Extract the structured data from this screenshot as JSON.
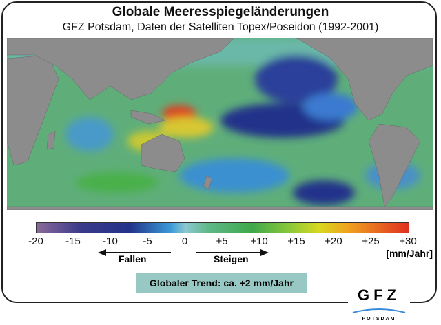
{
  "title": "Globale Meeresspiegeländerungen",
  "subtitle": "GFZ Potsdam, Daten der Satelliten Topex/Poseidon (1992-2001)",
  "colorbar": {
    "ticks": [
      "-20",
      "-15",
      "-10",
      "-5",
      "0",
      "+5",
      "+10",
      "+15",
      "+20",
      "+25",
      "+30"
    ],
    "unit": "[mm/Jahr]",
    "range": [
      -20,
      30
    ],
    "colors": [
      "#8a6a9a",
      "#23338a",
      "#3a9ad8",
      "#8cc8d0",
      "#3fa84a",
      "#d8d820",
      "#e03020"
    ]
  },
  "arrows": {
    "falling": "Fallen",
    "rising": "Steigen"
  },
  "trend": "Globaler Trend: ca. +2 mm/Jahr",
  "logo": {
    "name": "GFZ",
    "city": "POTSDAM"
  },
  "map": {
    "land_color": "#8c8c8c",
    "ocean_base": "#5fae7a"
  }
}
